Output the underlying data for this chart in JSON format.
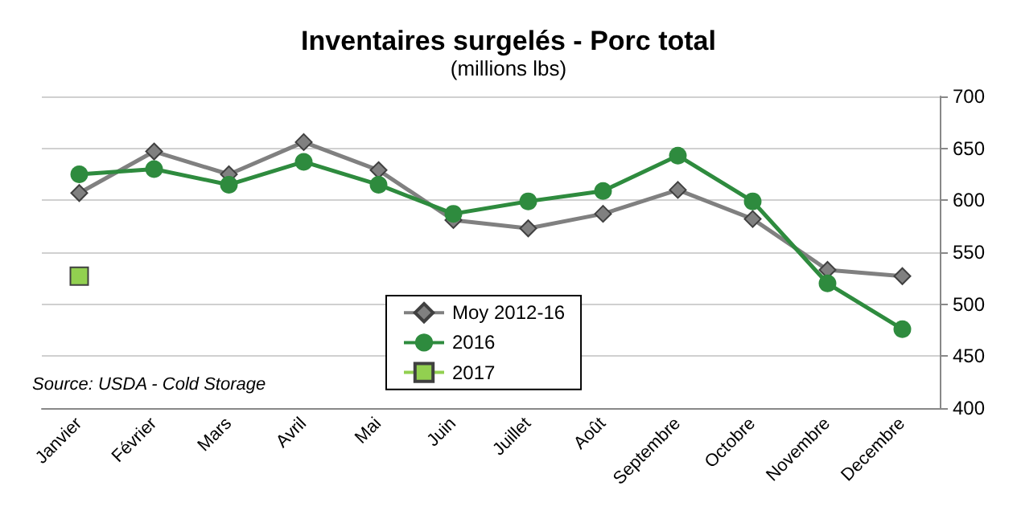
{
  "chart_data": {
    "type": "line",
    "title": "Inventaires surgelés - Porc total",
    "subtitle": "(millions lbs)",
    "categories": [
      "Janvier",
      "Février",
      "Mars",
      "Avril",
      "Mai",
      "Juin",
      "Juillet",
      "Août",
      "Septembre",
      "Octobre",
      "Novembre",
      "Decembre"
    ],
    "series": [
      {
        "name": "Moy 2012-16",
        "color": "#808080",
        "marker": "diamond",
        "values": [
          607,
          647,
          625,
          656,
          629,
          581,
          573,
          587,
          610,
          582,
          533,
          527
        ]
      },
      {
        "name": "2016",
        "color": "#2e8b3e",
        "marker": "circle",
        "values": [
          625,
          630,
          615,
          637,
          615,
          587,
          599,
          609,
          643,
          599,
          520,
          476
        ]
      },
      {
        "name": "2017",
        "color": "#92d050",
        "marker": "square",
        "values": [
          527,
          null,
          null,
          null,
          null,
          null,
          null,
          null,
          null,
          null,
          null,
          null
        ]
      }
    ],
    "ylim": [
      400,
      700
    ],
    "yticks": [
      400,
      450,
      500,
      550,
      600,
      650,
      700
    ],
    "grid": "y",
    "legend": "bottom",
    "annotations": [
      "Source: USDA - Cold Storage"
    ]
  }
}
